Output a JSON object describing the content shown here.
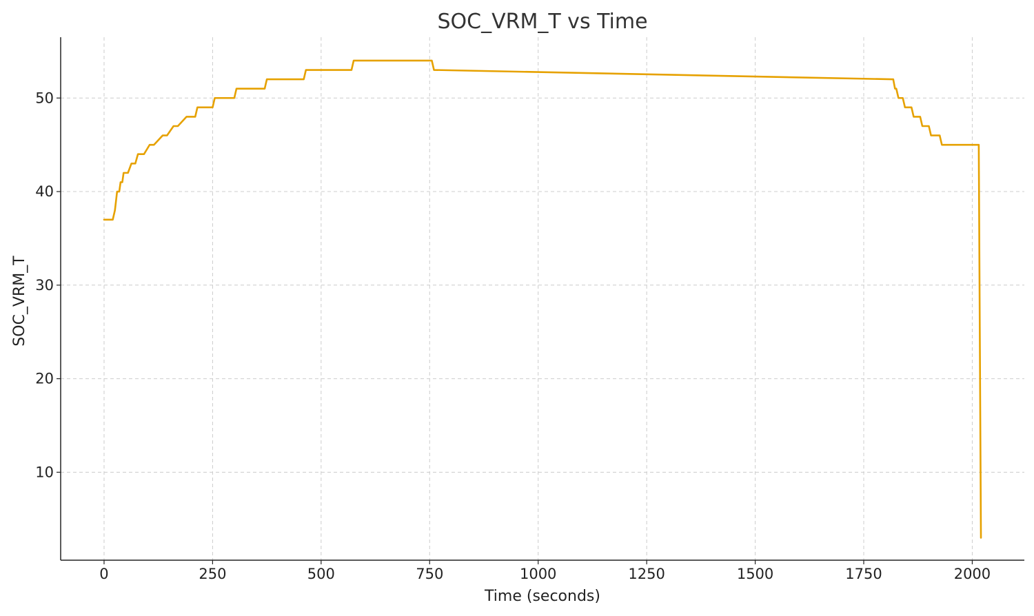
{
  "chart_data": {
    "type": "line",
    "title": "SOC_VRM_T vs Time",
    "xlabel": "Time (seconds)",
    "ylabel": "SOC_VRM_T",
    "xlim": [
      -100,
      2120
    ],
    "ylim": [
      0.6,
      56.5
    ],
    "xticks": [
      0,
      250,
      500,
      750,
      1000,
      1250,
      1500,
      1750,
      2000
    ],
    "xtick_labels": [
      "0",
      "250",
      "500",
      "750",
      "1000",
      "1250",
      "1500",
      "1750",
      "2000"
    ],
    "yticks": [
      10,
      20,
      30,
      40,
      50
    ],
    "ytick_labels": [
      "10",
      "20",
      "30",
      "40",
      "50"
    ],
    "grid": true,
    "colors": {
      "line": "#e6a100"
    },
    "series": [
      {
        "x": [
          0,
          20,
          25,
          30,
          35,
          38,
          42,
          45,
          48,
          52,
          55,
          63,
          68,
          72,
          78,
          85,
          88,
          92,
          105,
          110,
          115,
          135,
          140,
          145,
          160,
          165,
          170,
          190,
          195,
          200,
          210,
          215,
          220,
          250,
          255,
          260,
          300,
          305,
          310,
          370,
          375,
          380,
          460,
          465,
          470,
          570,
          575,
          580,
          750,
          755,
          760,
          1815,
          1818,
          1822,
          1825,
          1830,
          1832,
          1840,
          1845,
          1850,
          1860,
          1865,
          1870,
          1880,
          1885,
          1890,
          1900,
          1905,
          1910,
          1925,
          1930,
          1935,
          1955,
          1960,
          1965,
          1990,
          1995,
          2000,
          2015,
          2020
        ],
        "y": [
          37,
          37,
          38,
          40,
          40,
          41,
          41,
          42,
          42,
          42,
          42,
          43,
          43,
          43,
          44,
          44,
          44,
          44,
          45,
          45,
          45,
          46,
          46,
          46,
          47,
          47,
          47,
          48,
          48,
          48,
          48,
          49,
          49,
          49,
          50,
          50,
          50,
          51,
          51,
          51,
          52,
          52,
          52,
          53,
          53,
          53,
          54,
          54,
          54,
          54,
          53,
          52,
          52,
          51,
          51,
          50,
          50,
          50,
          49,
          49,
          49,
          48,
          48,
          48,
          47,
          47,
          47,
          46,
          46,
          46,
          45,
          45,
          45,
          45,
          45,
          45,
          45,
          45,
          45,
          3
        ]
      }
    ]
  }
}
